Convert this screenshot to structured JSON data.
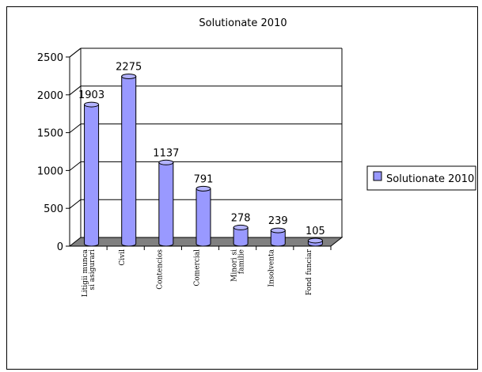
{
  "chart_data": {
    "type": "bar",
    "title": "Solutionate 2010",
    "categories": [
      [
        "Litigii munca",
        "si asigurari"
      ],
      [
        "Civil"
      ],
      [
        "Contencios"
      ],
      [
        "Comercial"
      ],
      [
        "Minori si",
        "familie"
      ],
      [
        "Insolventa"
      ],
      [
        "Fond funciar"
      ]
    ],
    "series": [
      {
        "name": "Solutionate 2010",
        "values": [
          1903,
          2275,
          1137,
          791,
          278,
          239,
          105
        ]
      }
    ],
    "ylim": [
      0,
      2500
    ],
    "yticks": [
      "0",
      "500",
      "1000",
      "1500",
      "2000",
      "2500"
    ],
    "data_labels": [
      "1903",
      "2275",
      "1137",
      "791",
      "278",
      "239",
      "105"
    ],
    "grid": true,
    "legend_position": "right",
    "colors": {
      "bar_fill": "#9999ff",
      "bar_top": "#b3b3ff",
      "bar_stroke": "#000000",
      "floor": "#808080"
    }
  }
}
